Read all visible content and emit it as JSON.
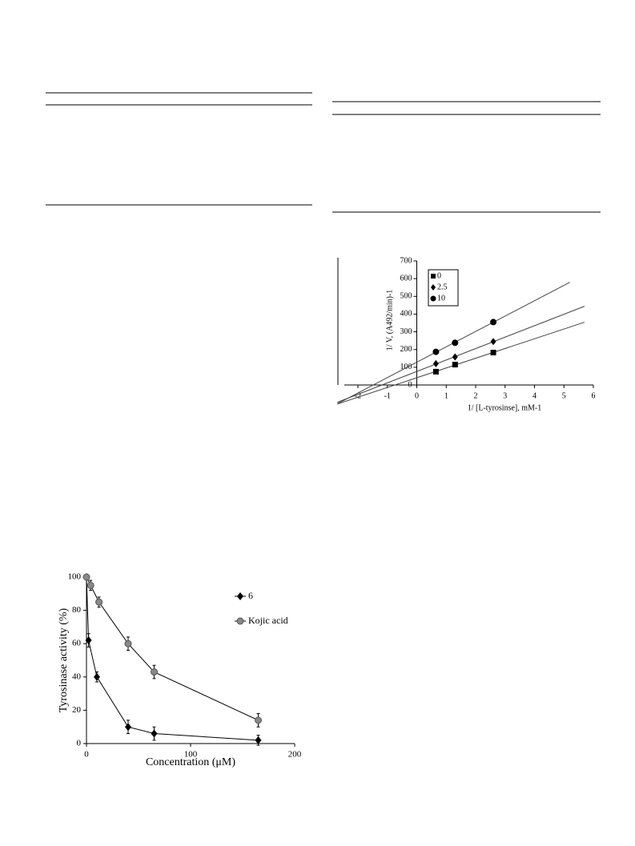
{
  "chart_data": [
    {
      "type": "scatter",
      "x_label": "1/ [L-tyrosinse], mM-1",
      "y_label": "1/ V, (A492/min)-1",
      "x": [
        0.65,
        1.3,
        2.6
      ],
      "series": [
        {
          "name": "0",
          "color": "#000000",
          "marker": "square",
          "values": [
            75,
            115,
            183
          ]
        },
        {
          "name": "2.5",
          "color": "#000000",
          "marker": "diamond",
          "values": [
            120,
            158,
            245
          ]
        },
        {
          "name": "10",
          "color": "#000000",
          "marker": "circle",
          "values": [
            187,
            238,
            355
          ]
        }
      ],
      "fit_lines": true,
      "xlim": [
        -2,
        6
      ],
      "xticks": [
        -2,
        -1,
        0,
        1,
        2,
        3,
        4,
        5,
        6
      ],
      "ylim": [
        0,
        700
      ],
      "yticks": [
        0,
        100,
        200,
        300,
        400,
        500,
        600,
        700
      ]
    },
    {
      "type": "line",
      "x_label": "Concentration (μM)",
      "y_label": "Tyrosinase activity (%)",
      "series": [
        {
          "name": "6",
          "color": "#000000",
          "marker": "diamond",
          "x": [
            0,
            2,
            10,
            40,
            65,
            165
          ],
          "values": [
            100,
            62,
            40,
            10,
            6,
            2
          ],
          "errors": [
            0,
            4,
            3,
            4,
            4,
            3
          ]
        },
        {
          "name": "Kojic acid",
          "color": "#888888",
          "marker": "circle",
          "x": [
            0,
            4,
            12,
            40,
            65,
            165
          ],
          "values": [
            100,
            95,
            85,
            60,
            43,
            14
          ],
          "errors": [
            0,
            3,
            3,
            4,
            4,
            4
          ]
        }
      ],
      "xlim": [
        0,
        200
      ],
      "xticks": [
        0,
        100,
        200
      ],
      "ylim": [
        0,
        100
      ],
      "yticks": [
        0,
        20,
        40,
        60,
        80,
        100
      ]
    }
  ]
}
